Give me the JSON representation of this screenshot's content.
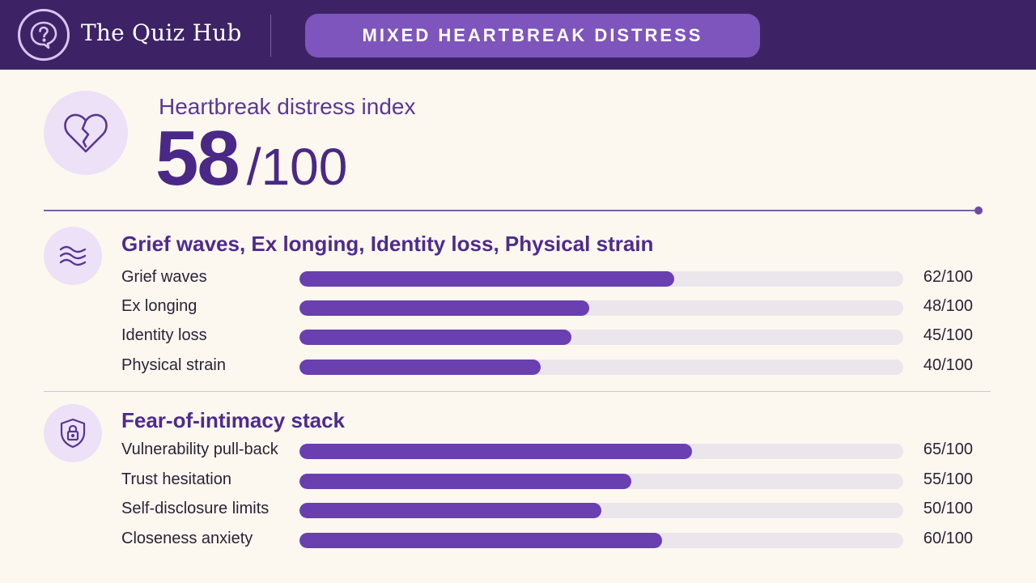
{
  "header": {
    "brand": "The Quiz Hub",
    "logo_icon": "question-bubble-icon",
    "pill_label": "MIXED HEARTBREAK DISTRESS"
  },
  "score": {
    "icon": "broken-heart-icon",
    "label": "Heartbreak distress index",
    "value": "58",
    "max_display": "/100"
  },
  "sections": [
    {
      "icon": "waves-icon",
      "title": "Grief waves, Ex longing, Identity loss, Physical strain",
      "rows": [
        {
          "label": "Grief waves",
          "score": 62,
          "display": "62/100"
        },
        {
          "label": "Ex longing",
          "score": 48,
          "display": "48/100"
        },
        {
          "label": "Identity loss",
          "score": 45,
          "display": "45/100"
        },
        {
          "label": "Physical strain",
          "score": 40,
          "display": "40/100"
        }
      ]
    },
    {
      "icon": "shield-lock-icon",
      "title": "Fear-of-intimacy stack",
      "rows": [
        {
          "label": "Vulnerability pull-back",
          "score": 65,
          "display": "65/100"
        },
        {
          "label": "Trust hesitation",
          "score": 55,
          "display": "55/100"
        },
        {
          "label": "Self-disclosure limits",
          "score": 50,
          "display": "50/100"
        },
        {
          "label": "Closeness anxiety",
          "score": 60,
          "display": "60/100"
        }
      ]
    }
  ],
  "colors": {
    "header_bg": "#3d2365",
    "pill_bg": "#7e55bc",
    "accent": "#6a3fb0",
    "track": "#ebe5ec",
    "page_bg": "#fcf8f0"
  }
}
